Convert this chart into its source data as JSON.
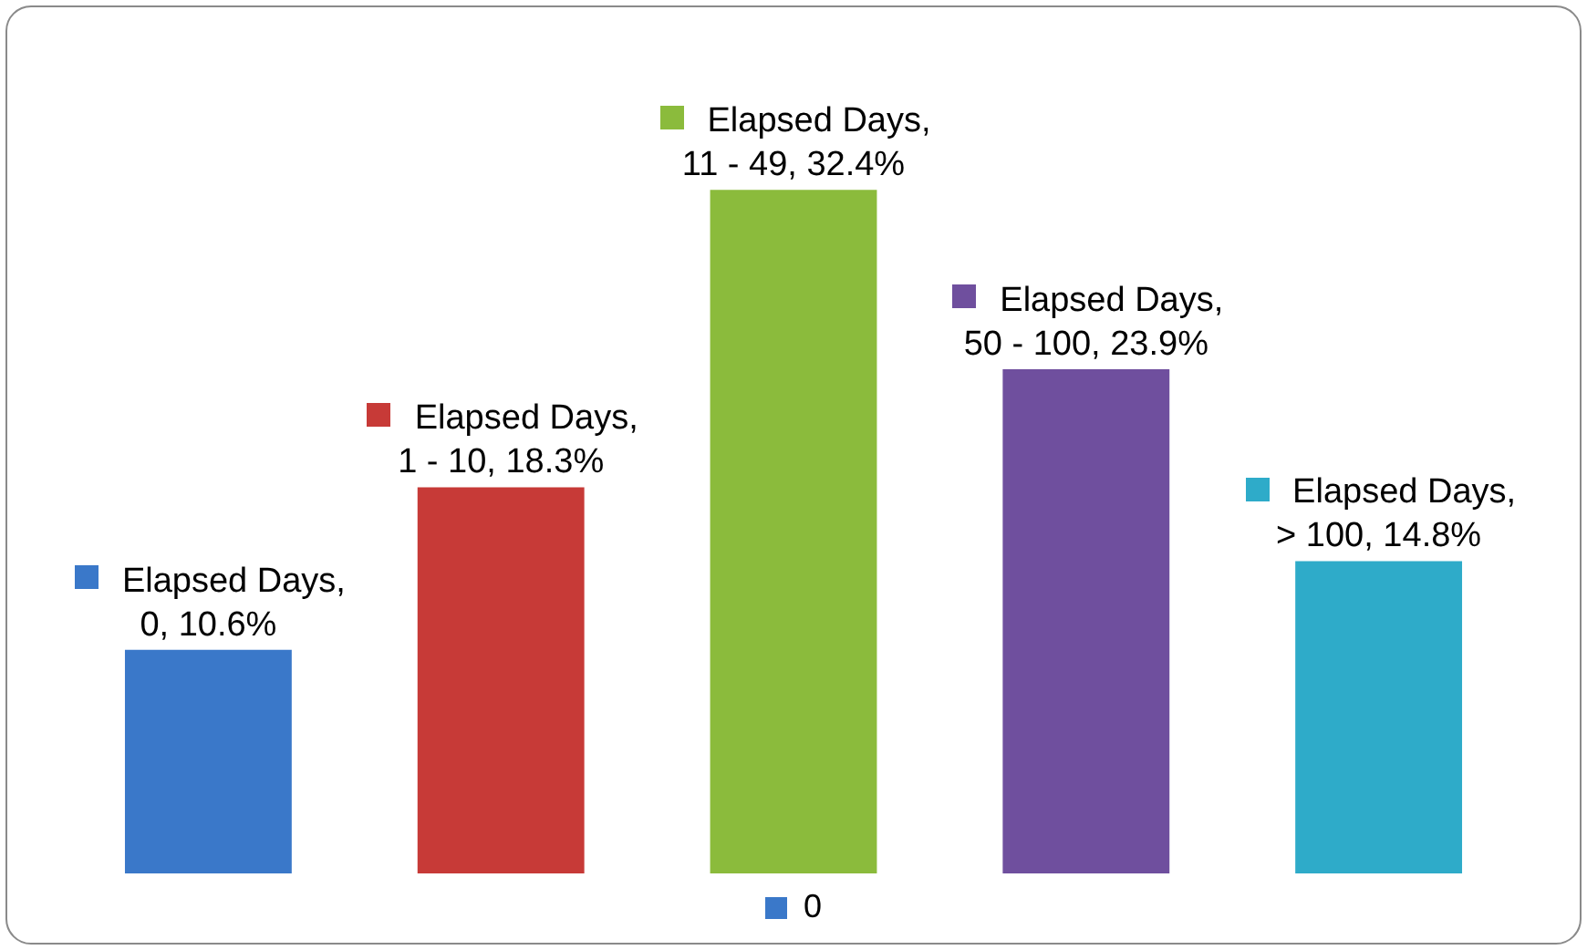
{
  "chart_data": {
    "type": "bar",
    "categories": [
      null,
      null,
      null,
      null,
      null
    ],
    "series": [
      {
        "name": "0",
        "colors": [
          "#3a78c9",
          "#c73a37",
          "#8bbb3c",
          "#6f4f9e",
          "#2eabc9"
        ],
        "values": [
          10.6,
          18.3,
          32.4,
          23.9,
          14.8
        ],
        "value_labels": [
          "Elapsed Days, 0, 10.6%",
          "Elapsed Days, 1 - 10, 18.3%",
          "Elapsed Days, 11 - 49, 32.4%",
          "Elapsed Days, 50 - 100, 23.9%",
          "Elapsed Days, > 100, 14.8%"
        ]
      }
    ],
    "tick_labels": false,
    "legend": "bottom"
  }
}
